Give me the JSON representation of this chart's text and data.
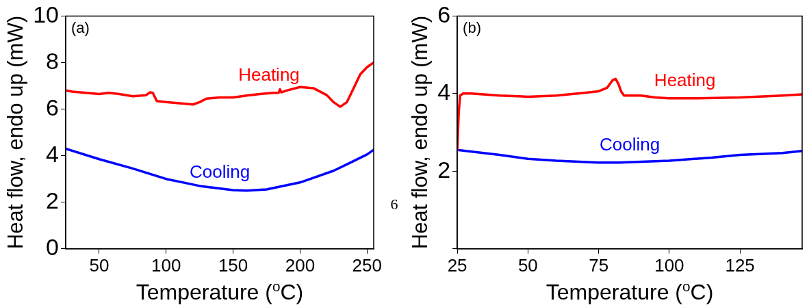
{
  "chart_data": [
    {
      "type": "line",
      "xlabel": "Temperature ($^{o}$C)",
      "ylabel": "Heat flow, endo up (mW)",
      "xlim": [
        25,
        255
      ],
      "ylim": [
        0,
        10
      ],
      "xticks": [
        50,
        100,
        150,
        200,
        250
      ],
      "yticks": [
        0,
        2,
        4,
        6,
        8,
        10
      ],
      "grid": false,
      "annotations": [
        "(a)",
        "6"
      ],
      "series": [
        {
          "name": "Heating",
          "color": "#ff0000",
          "x": [
            25,
            30,
            40,
            50,
            57,
            65,
            75,
            85,
            88,
            90,
            93,
            100,
            110,
            120,
            125,
            130,
            140,
            150,
            160,
            170,
            180,
            184,
            185,
            186,
            190,
            200,
            210,
            220,
            225,
            230,
            235,
            240,
            245,
            250,
            255
          ],
          "values": [
            6.8,
            6.75,
            6.7,
            6.65,
            6.7,
            6.65,
            6.55,
            6.6,
            6.72,
            6.7,
            6.35,
            6.3,
            6.25,
            6.2,
            6.3,
            6.45,
            6.5,
            6.5,
            6.58,
            6.65,
            6.7,
            6.7,
            6.85,
            6.72,
            6.8,
            6.95,
            6.9,
            6.6,
            6.3,
            6.1,
            6.3,
            6.9,
            7.5,
            7.8,
            8.0
          ]
        },
        {
          "name": "Cooling",
          "color": "#0000ff",
          "x": [
            25,
            50,
            75,
            100,
            125,
            150,
            160,
            175,
            200,
            225,
            250,
            255
          ],
          "values": [
            4.3,
            3.85,
            3.45,
            3.0,
            2.7,
            2.52,
            2.5,
            2.55,
            2.85,
            3.35,
            4.05,
            4.25
          ]
        }
      ]
    },
    {
      "type": "line",
      "xlabel": "Temperature ($^{o}$C)",
      "ylabel": "Heat flow, endo up (mW)",
      "xlim": [
        25,
        147
      ],
      "ylim": [
        0,
        6
      ],
      "xticks": [
        25,
        50,
        75,
        100,
        125
      ],
      "yticks": [
        {
          "value": 0,
          "label": null
        },
        2,
        4,
        6
      ],
      "grid": false,
      "annotations": [
        "(b)"
      ],
      "series": [
        {
          "name": "Heating",
          "color": "#ff0000",
          "x": [
            25,
            25.5,
            26,
            27,
            30,
            40,
            50,
            60,
            70,
            75,
            78,
            80,
            81,
            82,
            83,
            84,
            90,
            95,
            100,
            110,
            125,
            140,
            147
          ],
          "values": [
            2.55,
            3.5,
            3.95,
            4.0,
            4.0,
            3.95,
            3.92,
            3.95,
            4.02,
            4.06,
            4.15,
            4.35,
            4.38,
            4.25,
            4.05,
            3.95,
            3.95,
            3.9,
            3.88,
            3.88,
            3.9,
            3.95,
            3.98
          ]
        },
        {
          "name": "Cooling",
          "color": "#0000ff",
          "x": [
            25,
            40,
            50,
            60,
            75,
            82,
            100,
            115,
            125,
            140,
            147
          ],
          "values": [
            2.55,
            2.42,
            2.32,
            2.27,
            2.22,
            2.22,
            2.27,
            2.35,
            2.42,
            2.47,
            2.52
          ]
        }
      ]
    }
  ]
}
